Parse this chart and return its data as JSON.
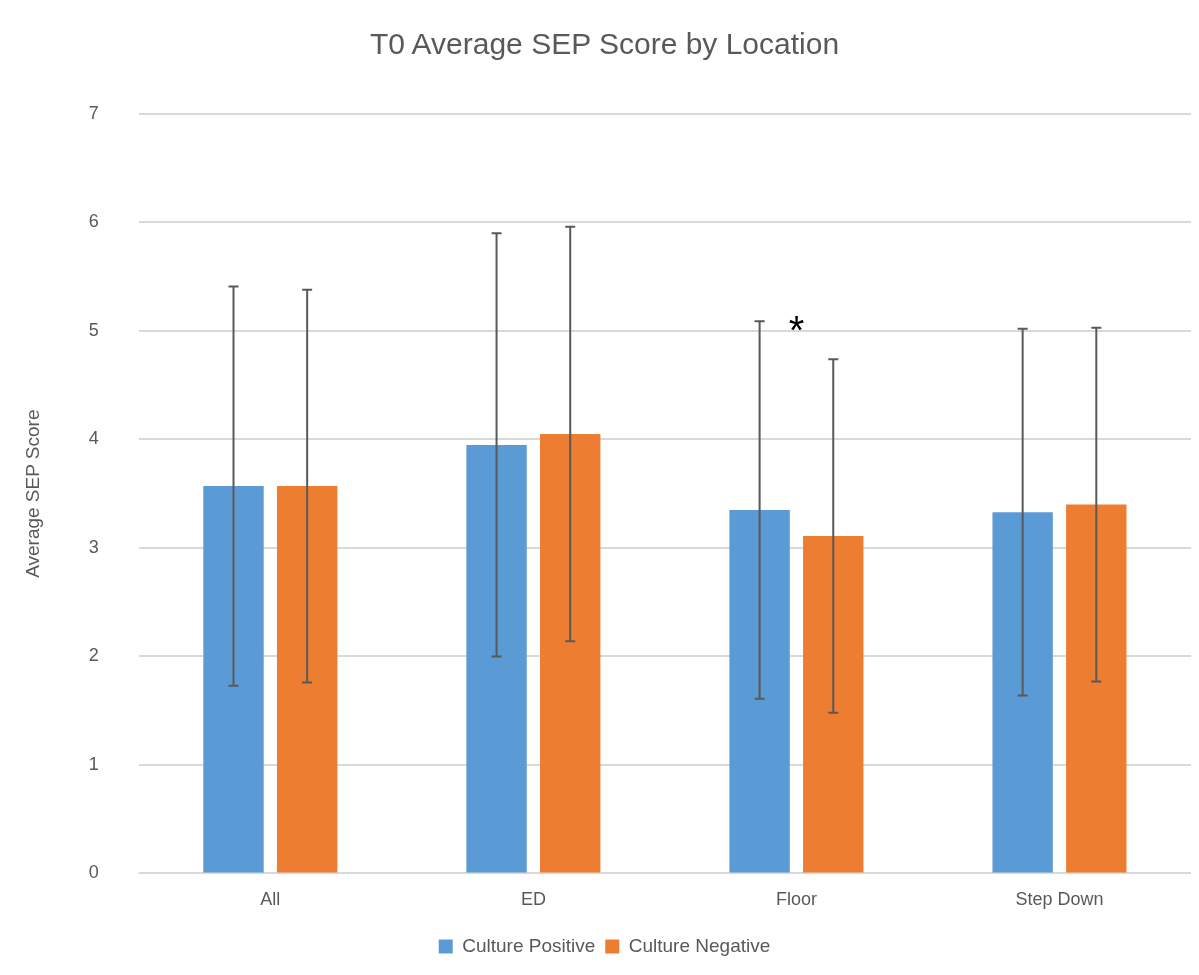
{
  "chart_data": {
    "type": "bar",
    "title": "T0 Average SEP Score by Location",
    "ylabel": "Average SEP Score",
    "categories": [
      "All",
      "ED",
      "Floor",
      "Step Down"
    ],
    "series": [
      {
        "name": "Culture Positive",
        "color": "#5b9bd5",
        "values": [
          3.57,
          3.95,
          3.35,
          3.33
        ],
        "errors": [
          1.84,
          1.95,
          1.74,
          1.69
        ]
      },
      {
        "name": "Culture Negative",
        "color": "#ed7d31",
        "values": [
          3.57,
          4.05,
          3.11,
          3.4
        ],
        "errors": [
          1.81,
          1.91,
          1.63,
          1.63
        ]
      }
    ],
    "ylim": [
      0,
      7
    ],
    "yticks": [
      0,
      1,
      2,
      3,
      4,
      5,
      6,
      7
    ],
    "grid": "y",
    "legend": "bottom",
    "annotations": [
      "*"
    ]
  }
}
